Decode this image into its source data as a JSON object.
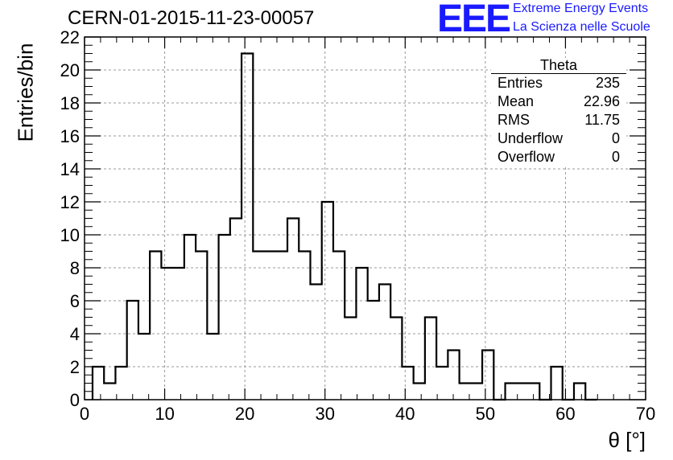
{
  "header": {
    "run_title": "CERN-01-2015-11-23-00057",
    "logo_letters": "EEE",
    "logo_line1": "Extreme Energy Events",
    "logo_line2": "La Scienza nelle Scuole",
    "brand_color": "#1a1aff"
  },
  "stats_box": {
    "title": "Theta",
    "rows": [
      {
        "label": "Entries",
        "value": "235"
      },
      {
        "label": "Mean",
        "value": "22.96"
      },
      {
        "label": "RMS",
        "value": "11.75"
      },
      {
        "label": "Underflow",
        "value": "0"
      },
      {
        "label": "Overflow",
        "value": "0"
      }
    ]
  },
  "chart_data": {
    "type": "histogram",
    "title": "CERN-01-2015-11-23-00057",
    "xlabel": "θ [°]",
    "ylabel": "Entries/bin",
    "xlim": [
      0,
      70
    ],
    "ylim": [
      0,
      22
    ],
    "bin_width": 1.43,
    "bin_start": 1.0,
    "x_ticks": [
      0,
      10,
      20,
      30,
      40,
      50,
      60,
      70
    ],
    "y_ticks": [
      0,
      2,
      4,
      6,
      8,
      10,
      12,
      14,
      16,
      18,
      20,
      22
    ],
    "grid": true,
    "values": [
      2,
      1,
      2,
      6,
      4,
      9,
      8,
      8,
      10,
      9,
      4,
      10,
      11,
      21,
      9,
      9,
      9,
      11,
      9,
      7,
      12,
      9,
      5,
      8,
      6,
      7,
      5,
      2,
      1,
      5,
      2,
      3,
      1,
      1,
      3,
      0,
      1,
      1,
      1,
      0,
      2,
      0,
      1,
      0
    ],
    "line_color": "#000000"
  }
}
